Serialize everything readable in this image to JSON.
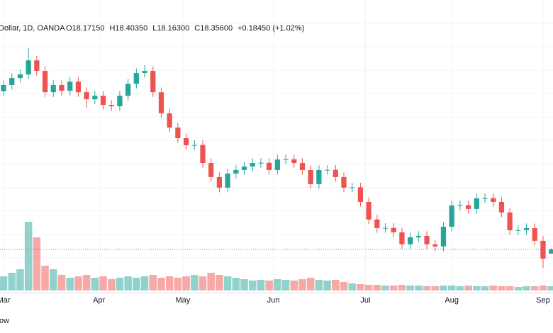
{
  "chart_data": {
    "type": "candlestick",
    "header": {
      "symbol": "Dollar, 1D, OANDA",
      "values": [
        "O18.17150",
        "H18.40350",
        "L18.16300",
        "C18.35600",
        "+0.18450 (+1.02%)"
      ]
    },
    "open": [
      25.1,
      25.37,
      25.67,
      25.82,
      26.42,
      25.97,
      25.06,
      25.37,
      25.12,
      25.51,
      25.06,
      24.76,
      24.91,
      24.52,
      24.46,
      24.91,
      25.42,
      25.88,
      25.97,
      25.06,
      24.16,
      23.55,
      23.1,
      22.8,
      22.81,
      22.04,
      21.44,
      20.99,
      21.59,
      21.74,
      21.89,
      22.04,
      22.05,
      21.74,
      22.19,
      22.2,
      22.04,
      21.74,
      21.14,
      21.74,
      21.75,
      21.44,
      20.99,
      21.0,
      20.38,
      19.63,
      19.26,
      19.27,
      19.08,
      18.57,
      18.87,
      18.93,
      18.57,
      18.48,
      19.32,
      20.23,
      20.24,
      20.08,
      20.53,
      20.54,
      20.38,
      19.93,
      19.17,
      19.18,
      19.26,
      18.72,
      18.1715
    ],
    "high": [
      25.57,
      25.87,
      26.02,
      26.94,
      26.62,
      26.17,
      25.57,
      25.57,
      25.71,
      25.71,
      25.26,
      25.11,
      25.11,
      24.72,
      25.11,
      25.62,
      26.08,
      26.22,
      26.17,
      25.26,
      24.36,
      23.75,
      23.3,
      23.01,
      23.01,
      22.24,
      21.64,
      21.79,
      21.94,
      22.09,
      22.24,
      22.25,
      22.25,
      22.39,
      22.4,
      22.4,
      22.24,
      21.94,
      21.94,
      21.95,
      21.95,
      21.64,
      21.2,
      21.2,
      20.58,
      19.83,
      19.47,
      19.47,
      19.28,
      19.07,
      19.13,
      19.13,
      18.77,
      19.52,
      20.43,
      20.44,
      20.44,
      20.73,
      20.74,
      20.74,
      20.58,
      20.13,
      19.38,
      19.46,
      19.46,
      18.92,
      18.4035
    ],
    "low": [
      24.9,
      25.17,
      25.47,
      25.62,
      25.77,
      24.86,
      24.86,
      24.92,
      24.92,
      24.86,
      24.4,
      24.56,
      24.32,
      24.26,
      24.26,
      24.71,
      25.22,
      25.68,
      24.86,
      23.96,
      23.35,
      22.9,
      22.6,
      22.6,
      21.84,
      21.24,
      20.79,
      20.79,
      21.39,
      21.54,
      21.69,
      21.84,
      21.54,
      21.54,
      21.99,
      21.84,
      21.54,
      20.94,
      20.94,
      21.54,
      21.24,
      20.79,
      20.79,
      20.18,
      19.43,
      19.06,
      19.06,
      18.88,
      18.37,
      18.37,
      18.67,
      18.37,
      18.28,
      18.28,
      19.12,
      20.03,
      19.88,
      19.88,
      20.33,
      20.18,
      19.73,
      18.97,
      18.97,
      18.98,
      18.52,
      17.56,
      18.163
    ],
    "close": [
      25.37,
      25.67,
      25.82,
      26.42,
      25.97,
      25.06,
      25.37,
      25.12,
      25.51,
      25.06,
      24.76,
      24.91,
      24.52,
      24.46,
      24.91,
      25.42,
      25.88,
      25.97,
      25.06,
      24.16,
      23.55,
      23.1,
      22.8,
      22.81,
      22.04,
      21.44,
      20.99,
      21.59,
      21.74,
      21.89,
      22.04,
      22.05,
      21.74,
      22.19,
      22.2,
      22.04,
      21.74,
      21.14,
      21.74,
      21.75,
      21.44,
      20.99,
      21.0,
      20.38,
      19.63,
      19.26,
      19.27,
      19.08,
      18.57,
      18.87,
      18.93,
      18.57,
      18.48,
      19.32,
      20.23,
      20.24,
      20.08,
      20.53,
      20.54,
      20.38,
      19.93,
      19.17,
      19.18,
      19.26,
      18.72,
      17.96,
      18.356
    ],
    "volume": [
      20,
      25,
      30,
      97,
      75,
      35,
      30,
      22,
      18,
      20,
      22,
      18,
      20,
      16,
      18,
      20,
      18,
      20,
      22,
      18,
      20,
      18,
      20,
      22,
      20,
      25,
      22,
      20,
      18,
      16,
      14,
      15,
      14,
      16,
      15,
      14,
      16,
      18,
      15,
      14,
      15,
      12,
      10,
      9,
      8,
      8,
      7,
      7,
      8,
      7,
      7,
      6,
      6,
      7,
      7,
      6,
      7,
      6,
      6,
      7,
      6,
      6,
      5,
      6,
      6,
      7,
      6
    ],
    "up_color": "#26a69a",
    "down_color": "#ef5350",
    "xlim": [
      -0.43,
      66.2
    ],
    "ylim": [
      16.6,
      28.24
    ],
    "vlim": [
      0,
      110
    ],
    "xticks": [
      {
        "value": 0,
        "label": "Mar"
      },
      {
        "value": 11.5,
        "label": "Apr"
      },
      {
        "value": 21.6,
        "label": "May"
      },
      {
        "value": 32.5,
        "label": "Jun"
      },
      {
        "value": 43.6,
        "label": "Jul"
      },
      {
        "value": 54,
        "label": "Aug"
      },
      {
        "value": 65,
        "label": "Sep"
      }
    ],
    "grid_lines": [
      17,
      18,
      19,
      20,
      21,
      22,
      23,
      24,
      25,
      26,
      27,
      28
    ],
    "grid": true,
    "last_price": 18.356,
    "footer": "ow"
  }
}
